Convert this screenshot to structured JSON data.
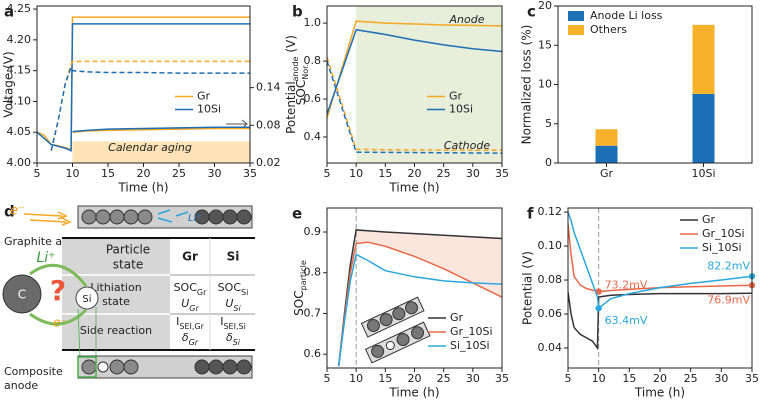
{
  "chart_data": [
    {
      "panel": "a",
      "type": "line",
      "xlabel": "Time (h)",
      "ylabel": "Voltage (V)",
      "y2label": [
        "Potential",
        "anode",
        " (V)"
      ],
      "x": [
        5,
        6,
        7,
        8,
        9,
        9.8,
        10,
        12,
        15,
        20,
        25,
        30,
        35
      ],
      "xlim": [
        5,
        35
      ],
      "xticks": [
        5,
        10,
        15,
        20,
        25,
        30,
        35
      ],
      "ylim": [
        4,
        4.255
      ],
      "yticks": [
        {
          "value": 4,
          "label": "4.00"
        },
        4.05,
        {
          "value": 4.1,
          "label": "4.10"
        },
        4.15,
        {
          "value": 4.2,
          "label": "4.20"
        },
        4.25
      ],
      "y2lim": [
        0.02,
        0.27
      ],
      "y2ticks": [
        0.02,
        0.08,
        0.14
      ],
      "span": {
        "x": [
          10,
          35
        ],
        "y": [
          4,
          4.035
        ],
        "color": "#fde3b6"
      },
      "annotations": [
        "Calendar aging"
      ],
      "legend": "center right",
      "series": [
        {
          "name": "Gr",
          "color": "#f5a623",
          "values": [
            4.05,
            4.045,
            4.03,
            4.028,
            4.025,
            4.022,
            4.237,
            4.237,
            4.237,
            4.237,
            4.237,
            4.237,
            4.237
          ]
        },
        {
          "name": "10Si",
          "color": "#1f6fb4",
          "values": [
            4.05,
            4.04,
            4.03,
            4.027,
            4.024,
            4.02,
            4.226,
            4.226,
            4.226,
            4.226,
            4.226,
            4.226,
            4.226
          ]
        },
        {
          "color": "#f5a623",
          "dash": true,
          "values": [
            null,
            null,
            4.02,
            4.07,
            4.13,
            4.16,
            4.165,
            4.165,
            4.165,
            4.165,
            4.165,
            4.165,
            4.165
          ]
        },
        {
          "color": "#1f6fb4",
          "dash": true,
          "values": [
            null,
            null,
            4.02,
            4.07,
            4.13,
            4.155,
            4.15,
            4.148,
            4.147,
            4.147,
            4.146,
            4.146,
            4.146
          ]
        },
        {
          "color": "#f5a623",
          "axis": "y2",
          "values": [
            null,
            null,
            null,
            null,
            null,
            null,
            0.069,
            0.071,
            0.072,
            0.073,
            0.074,
            0.075,
            0.075
          ]
        },
        {
          "color": "#1f6fb4",
          "axis": "y2",
          "values": [
            null,
            null,
            null,
            null,
            null,
            null,
            0.07,
            0.072,
            0.074,
            0.075,
            0.076,
            0.077,
            0.077
          ]
        }
      ]
    },
    {
      "panel": "b",
      "type": "line",
      "xlabel": "Time (h)",
      "ylabel": [
        "SOC",
        "Nor."
      ],
      "x": [
        5,
        10,
        15,
        20,
        25,
        30,
        35
      ],
      "xlim": [
        5,
        35
      ],
      "xticks": [
        5,
        10,
        15,
        20,
        25,
        30,
        35
      ],
      "ylim": [
        0.263,
        1.09
      ],
      "yticks": [
        0.4,
        0.6,
        0.8,
        {
          "value": 1,
          "label": "1.0"
        }
      ],
      "span": {
        "x": [
          10,
          35
        ],
        "color": "#e7efdb"
      },
      "annotations": [
        "Anode",
        "Cathode"
      ],
      "legend": "center right",
      "series": [
        {
          "name": "Gr",
          "color": "#f5a623",
          "values": [
            0.5,
            1.01,
            1.0,
            0.995,
            0.99,
            0.988,
            0.985
          ]
        },
        {
          "name": "10Si",
          "color": "#1f6fb4",
          "values": [
            0.52,
            0.965,
            0.94,
            0.91,
            0.885,
            0.865,
            0.85
          ]
        },
        {
          "color": "#f5a623",
          "dash": true,
          "values": [
            0.82,
            0.335,
            0.333,
            0.332,
            0.331,
            0.33,
            0.33
          ]
        },
        {
          "color": "#1f6fb4",
          "dash": true,
          "values": [
            0.8,
            0.32,
            0.319,
            0.318,
            0.317,
            0.316,
            0.315
          ]
        }
      ]
    },
    {
      "panel": "c",
      "type": "bar",
      "stacked": true,
      "ylabel": "Normalized loss (%)",
      "categories": [
        "Gr",
        "10Si"
      ],
      "ylim": [
        0,
        20
      ],
      "yticks": [
        0,
        5,
        10,
        15,
        20
      ],
      "legend": "upper left",
      "series": [
        {
          "name": "Anode Li loss",
          "color": "#1b6fb5",
          "values": [
            2.2,
            8.8
          ]
        },
        {
          "name": "Others",
          "color": "#f5b22a",
          "values": [
            2.1,
            8.8
          ]
        }
      ]
    },
    {
      "panel": "e",
      "type": "line",
      "xlabel": "Time (h)",
      "ylabel": [
        "SOC",
        "particle"
      ],
      "x": [
        7,
        8,
        9,
        10,
        12,
        15,
        20,
        25,
        30,
        35
      ],
      "xlim": [
        5,
        35
      ],
      "xticks": [
        5,
        10,
        15,
        20,
        25,
        30,
        35
      ],
      "ylim": [
        0.566,
        0.959
      ],
      "yticks": [
        0.6,
        0.7,
        0.8,
        0.9
      ],
      "vline": 10,
      "shade_color": "#fbe6de",
      "legend": "lower right",
      "series": [
        {
          "name": "Gr",
          "color": "#333333",
          "values": [
            0.57,
            0.7,
            0.82,
            0.905,
            0.903,
            0.9,
            0.896,
            0.892,
            0.888,
            0.884
          ]
        },
        {
          "name": "Gr_10Si",
          "color": "#e8694a",
          "values": [
            0.57,
            0.69,
            0.8,
            0.872,
            0.875,
            0.865,
            0.84,
            0.81,
            0.775,
            0.74
          ]
        },
        {
          "name": "Si_10Si",
          "color": "#2aa7de",
          "values": [
            0.57,
            0.68,
            0.78,
            0.845,
            0.83,
            0.805,
            0.79,
            0.78,
            0.775,
            0.772
          ]
        }
      ]
    },
    {
      "panel": "f",
      "type": "line",
      "xlabel": "Time (h)",
      "ylabel": "Potential (V)",
      "x": [
        5,
        5.5,
        6,
        7,
        8,
        9,
        9.8,
        10,
        12,
        15,
        20,
        25,
        30,
        35
      ],
      "xlim": [
        5,
        35
      ],
      "xticks": [
        5,
        10,
        15,
        20,
        25,
        30,
        35
      ],
      "ylim": [
        0.0282,
        0.1224
      ],
      "yticks": [
        0.04,
        0.06,
        0.08,
        {
          "value": 0.1,
          "label": "0.10"
        },
        0.12
      ],
      "vline": 10,
      "legend": "upper right",
      "series": [
        {
          "name": "Gr",
          "color": "#333333",
          "values": [
            0.073,
            0.06,
            0.052,
            0.048,
            0.046,
            0.044,
            0.04,
            0.07,
            0.071,
            0.0715,
            0.072,
            0.072,
            0.072,
            0.0722
          ]
        },
        {
          "name": "Gr_10Si",
          "color": "#e8694a",
          "values": [
            0.113,
            0.095,
            0.082,
            0.077,
            0.075,
            0.074,
            0.0735,
            0.0732,
            0.0738,
            0.0745,
            0.0755,
            0.076,
            0.0765,
            0.0769
          ],
          "markers": {
            "x": [
              10,
              35
            ],
            "values": [
              0.0732,
              0.0769
            ],
            "value_labels": [
              "73.2mV",
              "76.9mV"
            ]
          }
        },
        {
          "name": "Si_10Si",
          "color": "#2aa7de",
          "values": [
            0.12,
            0.115,
            0.108,
            0.098,
            0.088,
            0.078,
            0.07,
            0.0634,
            0.069,
            0.072,
            0.0755,
            0.078,
            0.08,
            0.0822
          ],
          "markers": {
            "x": [
              10,
              35
            ],
            "values": [
              0.0634,
              0.0822
            ],
            "value_labels": [
              "63.4mV",
              "82.2mV"
            ]
          }
        }
      ]
    }
  ],
  "diagram": {
    "panel": "d",
    "electron_top": "e⁻",
    "li_small": "Li⁺",
    "graphite_label": "Graphite anode",
    "li_big": "Li⁺",
    "particle_c": "C",
    "particle_si": "Si",
    "question": "?",
    "electron_bottom": "e⁻",
    "composite_label": [
      "Composite",
      "anode"
    ],
    "table": {
      "header": [
        [
          "Particle",
          "state"
        ],
        "Gr",
        "Si"
      ],
      "rows": [
        {
          "label": [
            "Lithiation",
            "state"
          ],
          "gr": [
            [
              "SOC",
              "Gr"
            ],
            [
              "U",
              "Gr"
            ]
          ],
          "si": [
            [
              "SOC",
              "Si"
            ],
            [
              "U",
              "Si"
            ]
          ]
        },
        {
          "label": [
            "Side reaction"
          ],
          "gr": [
            [
              "I",
              "SEI,Gr"
            ],
            [
              "δ",
              "Gr"
            ]
          ],
          "si": [
            [
              "I",
              "SEI,Si"
            ],
            [
              "δ",
              "Si"
            ]
          ]
        }
      ]
    }
  }
}
